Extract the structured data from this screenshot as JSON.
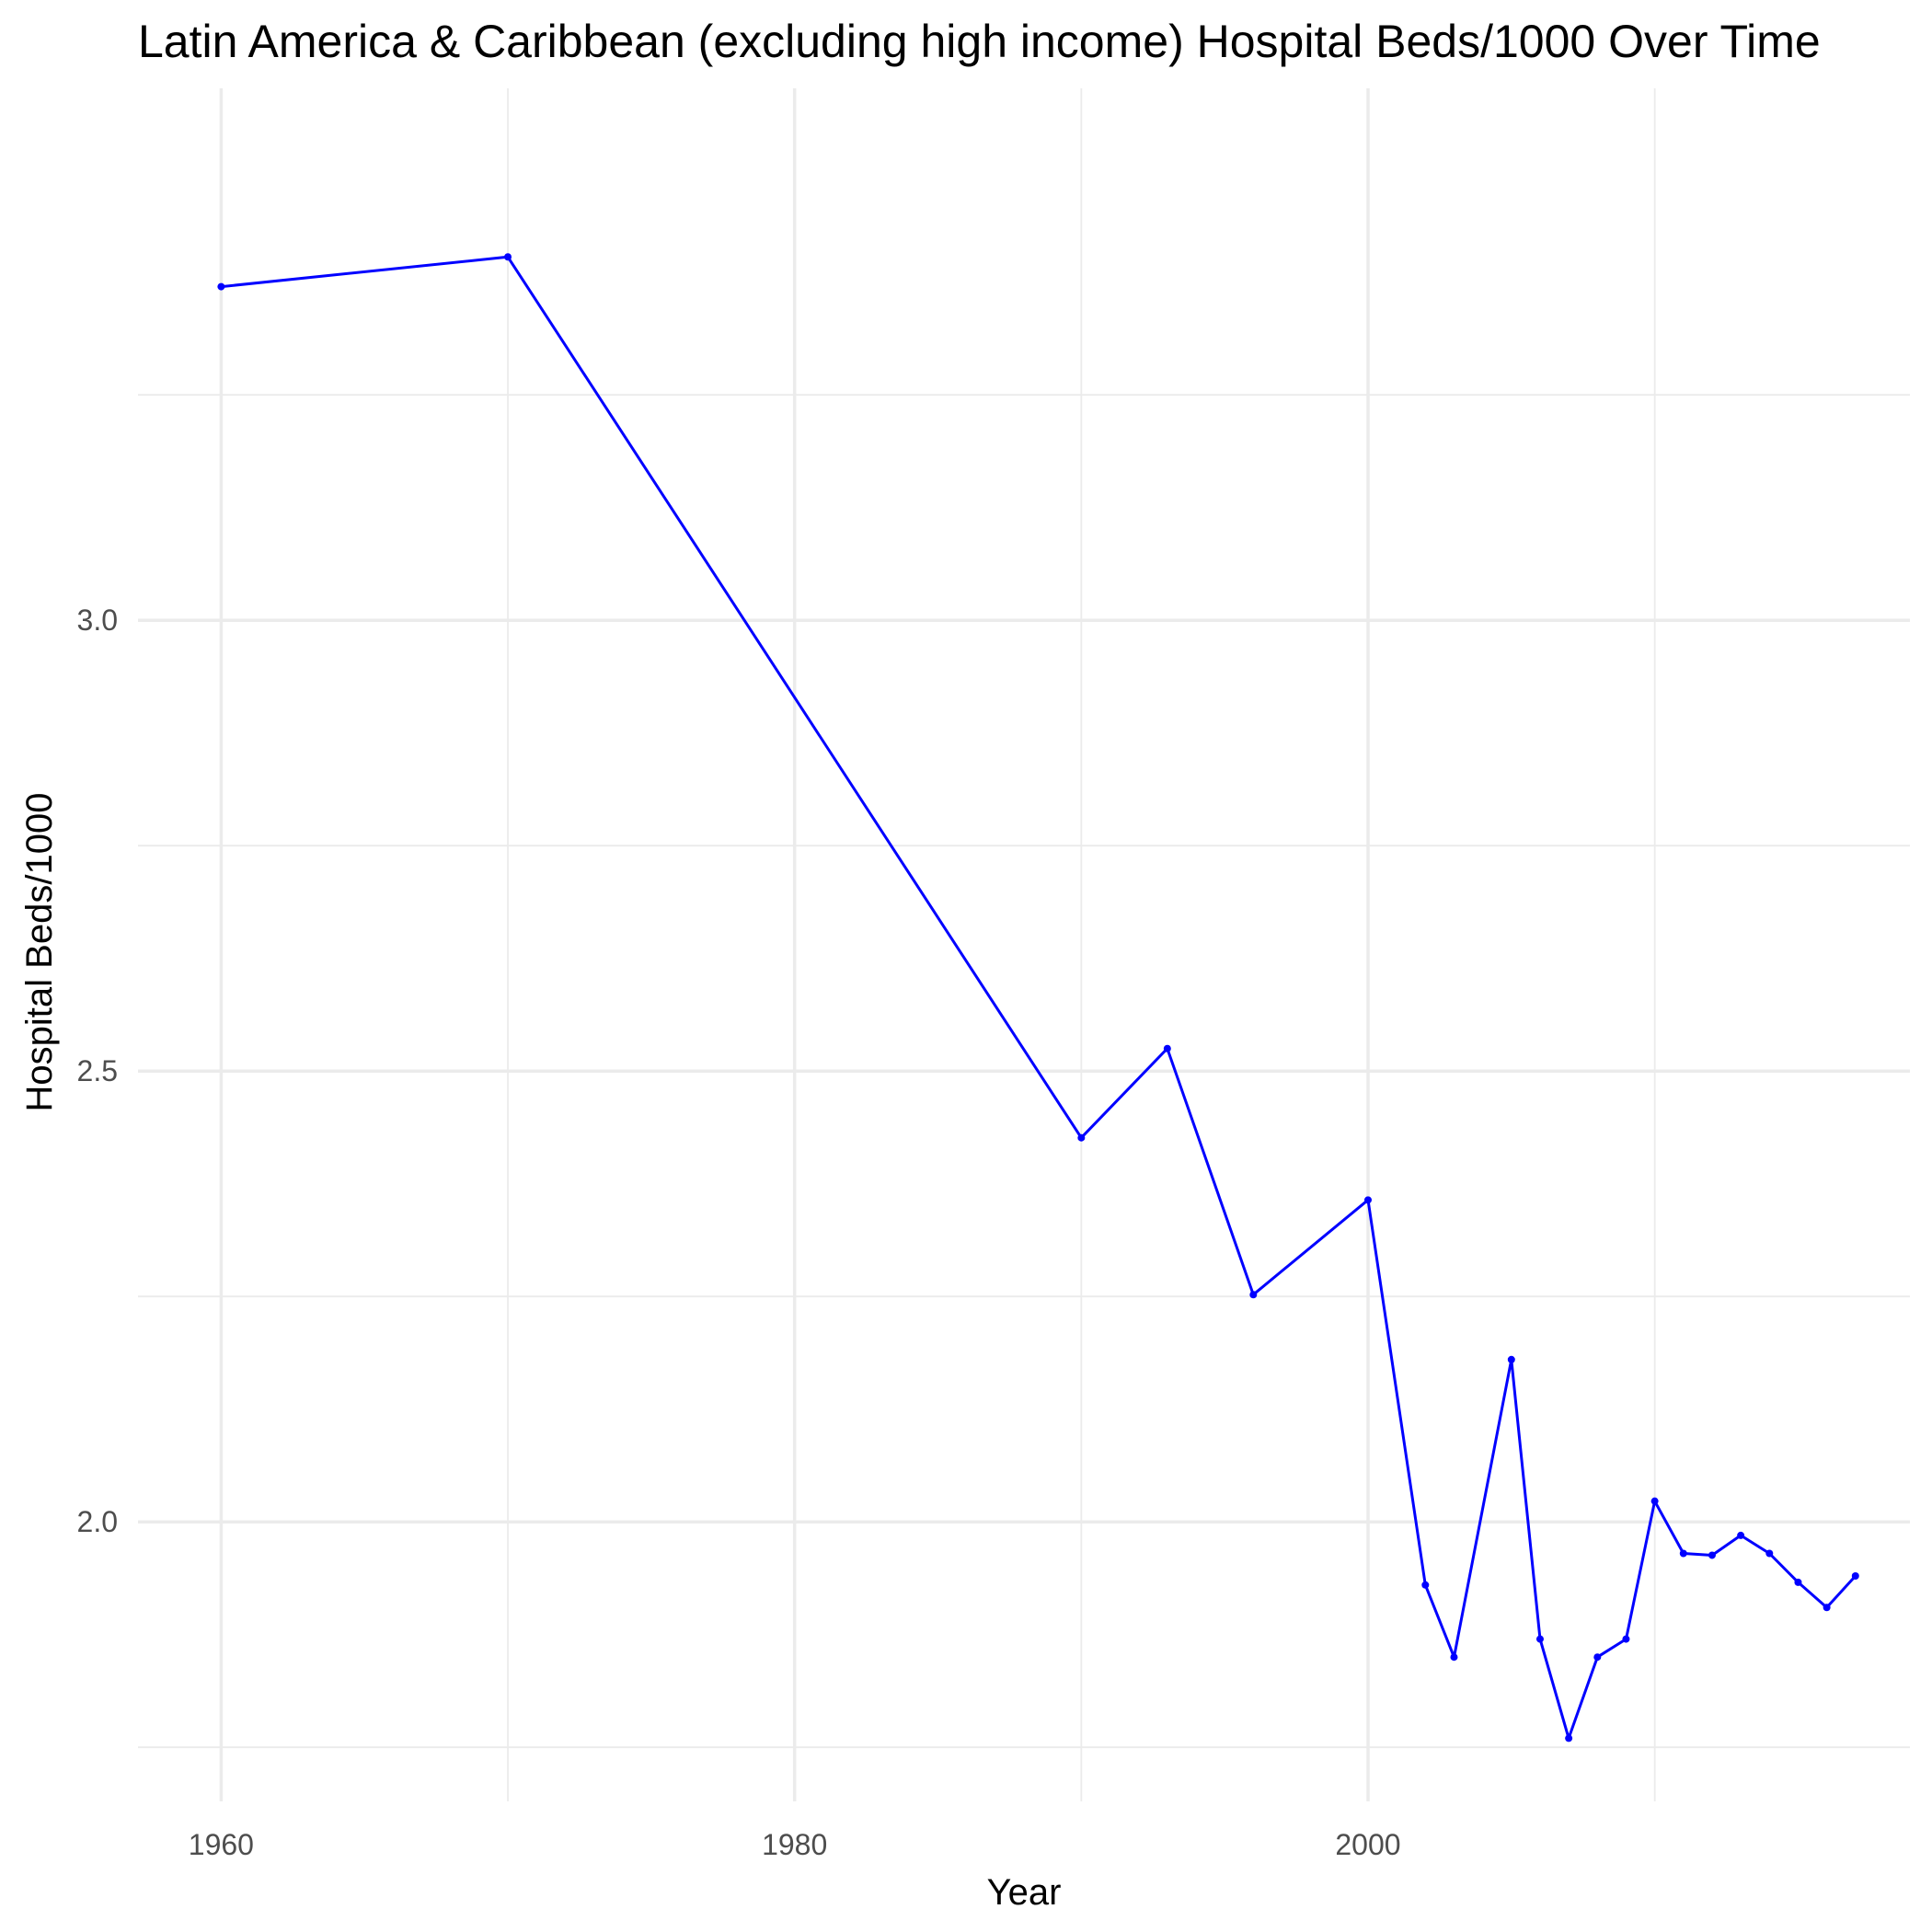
{
  "chart_data": {
    "type": "line",
    "title": "Latin America & Caribbean (excluding high income) Hospital Beds/1000 Over Time",
    "xlabel": "Year",
    "ylabel": "Hospital Beds/1000",
    "xlim": [
      1957.1,
      2018.9
    ],
    "ylim": [
      1.69,
      3.59
    ],
    "x_ticks": [
      1960,
      1980,
      2000
    ],
    "x_tick_labels": [
      "1960",
      "1980",
      "2000"
    ],
    "x_minor_ticks": [
      1970,
      1990,
      2010
    ],
    "y_ticks": [
      2.0,
      2.5,
      3.0
    ],
    "y_tick_labels": [
      "2.0",
      "2.5",
      "3.0"
    ],
    "y_minor_ticks": [
      1.75,
      2.25,
      2.75,
      3.25
    ],
    "grid": true,
    "color": "#0000ff",
    "series": [
      {
        "name": "Hospital Beds/1000",
        "x": [
          1960,
          1970,
          1990,
          1993,
          1996,
          2000,
          2002,
          2003,
          2005,
          2006,
          2007,
          2008,
          2009,
          2010,
          2011,
          2012,
          2013,
          2014,
          2015,
          2016,
          2017
        ],
        "values": [
          3.37,
          3.403,
          2.426,
          2.525,
          2.252,
          2.357,
          1.93,
          1.85,
          2.18,
          1.87,
          1.76,
          1.85,
          1.87,
          2.023,
          1.965,
          1.963,
          1.985,
          1.965,
          1.933,
          1.905,
          1.94
        ]
      }
    ]
  }
}
